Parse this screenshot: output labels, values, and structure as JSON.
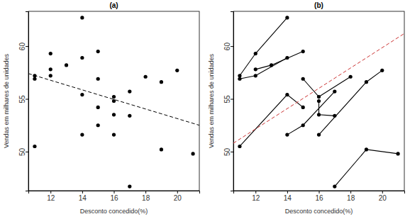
{
  "chart_data": [
    {
      "type": "scatter",
      "title": "(a)",
      "x_label": "Desconto concedido(%)",
      "y_label": "Vendas em milhares de unidades",
      "xlim": [
        10.6,
        21.4
      ],
      "xticks": [
        12,
        14,
        16,
        18,
        20
      ],
      "ylim": [
        46.3,
        63.3
      ],
      "yticks": [
        50,
        55,
        60
      ],
      "series": [
        {
          "color": "#000000",
          "marker": "circle",
          "x": [
            11,
            11,
            11,
            12,
            12,
            12,
            13,
            14,
            14,
            14,
            14,
            15,
            15,
            15,
            15,
            16,
            16,
            16,
            16,
            17,
            17,
            17,
            18,
            19,
            19,
            20,
            21
          ],
          "values": [
            57.2,
            56.9,
            50.5,
            59.3,
            57.8,
            57.2,
            58.2,
            62.7,
            58.9,
            55.4,
            51.6,
            59.5,
            56.9,
            54.2,
            52.5,
            55.2,
            54.8,
            53.5,
            51.6,
            55.7,
            53.4,
            46.7,
            57.1,
            56.6,
            50.2,
            57.7,
            49.8
          ]
        }
      ],
      "trend_line": {
        "x": [
          10.6,
          21.4
        ],
        "values": [
          57.4,
          52.5
        ],
        "color": "#000000",
        "line_style": "dashed"
      }
    },
    {
      "type": "line",
      "title": "(b)",
      "x_label": "Desconto concedido(%)",
      "y_label": "Vendas em milhares de unidades",
      "xlim": [
        10.6,
        21.4
      ],
      "xticks": [
        12,
        14,
        16,
        18,
        20
      ],
      "ylim": [
        46.3,
        63.3
      ],
      "yticks": [
        50,
        55,
        60
      ],
      "series": [
        {
          "color": "#000000",
          "marker": "circle",
          "line_style": "solid",
          "x": [
            11,
            12,
            14
          ],
          "values": [
            57.2,
            59.3,
            62.7
          ]
        },
        {
          "color": "#000000",
          "marker": "circle",
          "line_style": "solid",
          "x": [
            11,
            12,
            14
          ],
          "values": [
            56.9,
            57.2,
            58.9
          ]
        },
        {
          "color": "#000000",
          "marker": "circle",
          "line_style": "solid",
          "x": [
            12,
            13,
            15
          ],
          "values": [
            57.8,
            58.2,
            59.5
          ]
        },
        {
          "color": "#000000",
          "marker": "circle",
          "line_style": "solid",
          "x": [
            11,
            14,
            15
          ],
          "values": [
            50.5,
            55.4,
            54.2
          ]
        },
        {
          "color": "#000000",
          "marker": "circle",
          "line_style": "solid",
          "x": [
            15,
            16,
            18
          ],
          "values": [
            56.9,
            55.2,
            57.1
          ]
        },
        {
          "color": "#000000",
          "marker": "circle",
          "line_style": "solid",
          "x": [
            14,
            15,
            17
          ],
          "values": [
            51.6,
            52.5,
            55.7
          ]
        },
        {
          "color": "#000000",
          "marker": "circle",
          "line_style": "solid",
          "x": [
            16,
            16,
            17
          ],
          "values": [
            54.8,
            53.5,
            53.4
          ]
        },
        {
          "color": "#000000",
          "marker": "circle",
          "line_style": "solid",
          "x": [
            16,
            19,
            20
          ],
          "values": [
            51.6,
            56.6,
            57.7
          ]
        },
        {
          "color": "#000000",
          "marker": "circle",
          "line_style": "solid",
          "x": [
            17,
            19,
            21
          ],
          "values": [
            46.7,
            50.2,
            49.8
          ]
        }
      ],
      "trend_line": {
        "x": [
          10.6,
          21.4
        ],
        "values": [
          50.8,
          61.2
        ],
        "color": "#cc3333",
        "line_style": "dashed"
      }
    }
  ]
}
